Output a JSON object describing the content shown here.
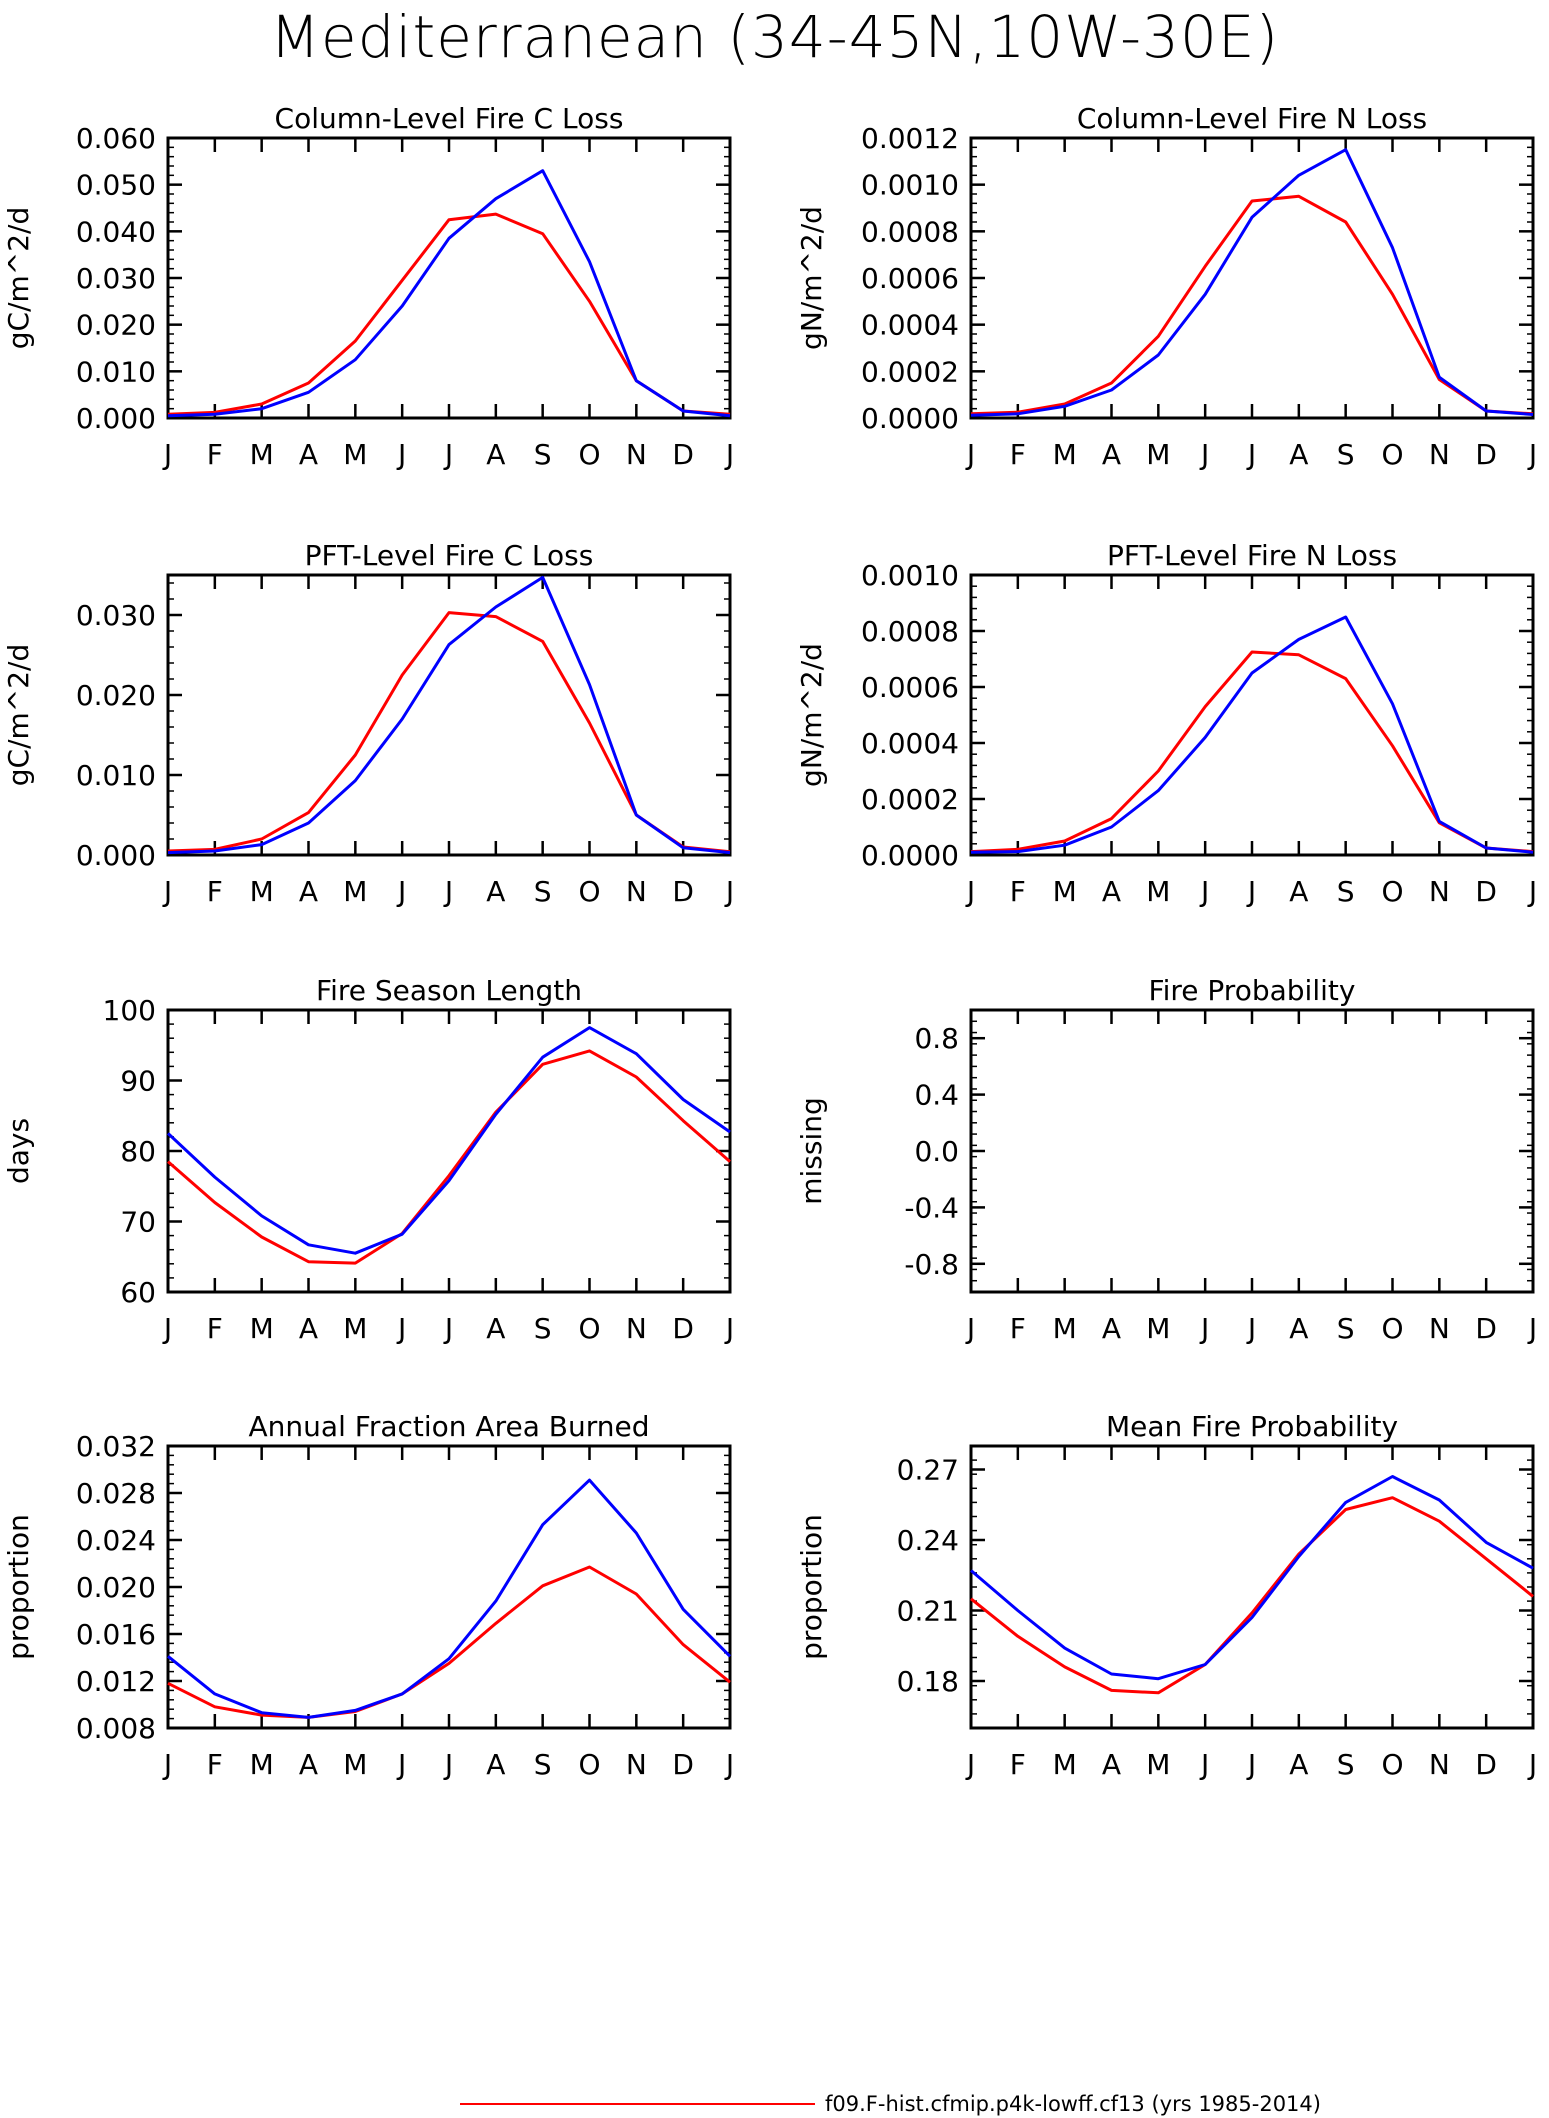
{
  "title": "Mediterranean (34-45N,10W-30E)",
  "colors": {
    "run1": "#ff0000",
    "run2": "#0000ff",
    "axis": "#000000"
  },
  "month_labels": [
    "J",
    "F",
    "M",
    "A",
    "M",
    "J",
    "J",
    "A",
    "S",
    "O",
    "N",
    "D",
    "J"
  ],
  "legend": [
    {
      "label": "f09.F-hist.cfmip.p4k-lowff.cf13 (yrs 1985-2014)",
      "color": "#ff0000"
    }
  ],
  "chart_data": [
    {
      "type": "line",
      "title": "Column-Level Fire C Loss",
      "ylabel": "gC/m^2/d",
      "ylim": [
        0,
        0.06
      ],
      "yticks": [
        "0.000",
        "0.010",
        "0.020",
        "0.030",
        "0.040",
        "0.050",
        "0.060"
      ],
      "categories": [
        "J",
        "F",
        "M",
        "A",
        "M",
        "J",
        "J",
        "A",
        "S",
        "O",
        "N",
        "D",
        "J"
      ],
      "series": [
        {
          "color": "#ff0000",
          "values": [
            0.0008,
            0.0012,
            0.003,
            0.0075,
            0.0165,
            0.0295,
            0.0425,
            0.0437,
            0.0395,
            0.025,
            0.008,
            0.0015,
            0.0008
          ]
        },
        {
          "color": "#0000ff",
          "values": [
            0.0005,
            0.0008,
            0.002,
            0.0055,
            0.0125,
            0.024,
            0.0385,
            0.047,
            0.053,
            0.0335,
            0.008,
            0.0015,
            0.0005
          ]
        }
      ]
    },
    {
      "type": "line",
      "title": "Column-Level Fire N Loss",
      "ylabel": "gN/m^2/d",
      "ylim": [
        0,
        0.0012
      ],
      "yticks": [
        "0.0000",
        "0.0002",
        "0.0004",
        "0.0006",
        "0.0008",
        "0.0010",
        "0.0012"
      ],
      "categories": [
        "J",
        "F",
        "M",
        "A",
        "M",
        "J",
        "J",
        "A",
        "S",
        "O",
        "N",
        "D",
        "J"
      ],
      "series": [
        {
          "color": "#ff0000",
          "values": [
            1.8e-05,
            2.5e-05,
            6e-05,
            0.00015,
            0.00035,
            0.00065,
            0.00093,
            0.00095,
            0.00084,
            0.00053,
            0.000165,
            3e-05,
            1.8e-05
          ]
        },
        {
          "color": "#0000ff",
          "values": [
            1.2e-05,
            1.8e-05,
            5e-05,
            0.00012,
            0.00027,
            0.00053,
            0.00086,
            0.00104,
            0.00115,
            0.00073,
            0.000175,
            3e-05,
            1.5e-05
          ]
        }
      ]
    },
    {
      "type": "line",
      "title": "PFT-Level Fire C Loss",
      "ylabel": "gC/m^2/d",
      "ylim": [
        0,
        0.035
      ],
      "yticks": [
        "0.000",
        "0.010",
        "0.020",
        "0.030"
      ],
      "ytick_values": [
        0,
        0.01,
        0.02,
        0.03
      ],
      "categories": [
        "J",
        "F",
        "M",
        "A",
        "M",
        "J",
        "J",
        "A",
        "S",
        "O",
        "N",
        "D",
        "J"
      ],
      "series": [
        {
          "color": "#ff0000",
          "values": [
            0.0005,
            0.0007,
            0.002,
            0.0053,
            0.0125,
            0.0225,
            0.0303,
            0.0298,
            0.0267,
            0.0165,
            0.005,
            0.001,
            0.0004
          ]
        },
        {
          "color": "#0000ff",
          "values": [
            0.0003,
            0.0005,
            0.0013,
            0.004,
            0.0093,
            0.017,
            0.0263,
            0.031,
            0.0347,
            0.0213,
            0.005,
            0.0009,
            0.0003
          ]
        }
      ]
    },
    {
      "type": "line",
      "title": "PFT-Level Fire N Loss",
      "ylabel": "gN/m^2/d",
      "ylim": [
        0,
        0.001
      ],
      "yticks": [
        "0.0000",
        "0.0002",
        "0.0004",
        "0.0006",
        "0.0008",
        "0.0010"
      ],
      "categories": [
        "J",
        "F",
        "M",
        "A",
        "M",
        "J",
        "J",
        "A",
        "S",
        "O",
        "N",
        "D",
        "J"
      ],
      "series": [
        {
          "color": "#ff0000",
          "values": [
            1.2e-05,
            2e-05,
            5e-05,
            0.00013,
            0.0003,
            0.00053,
            0.000725,
            0.000715,
            0.00063,
            0.00039,
            0.000115,
            2.5e-05,
            1.2e-05
          ]
        },
        {
          "color": "#0000ff",
          "values": [
            1e-05,
            1.2e-05,
            3.5e-05,
            0.0001,
            0.00023,
            0.00042,
            0.00065,
            0.00077,
            0.00085,
            0.00054,
            0.00012,
            2.5e-05,
            1e-05
          ]
        }
      ]
    },
    {
      "type": "line",
      "title": "Fire Season Length",
      "ylabel": "days",
      "ylim": [
        60,
        100
      ],
      "yticks": [
        "60",
        "70",
        "80",
        "90",
        "100"
      ],
      "categories": [
        "J",
        "F",
        "M",
        "A",
        "M",
        "J",
        "J",
        "A",
        "S",
        "O",
        "N",
        "D",
        "J"
      ],
      "series": [
        {
          "color": "#ff0000",
          "values": [
            78.5,
            72.7,
            67.8,
            64.3,
            64.1,
            68.3,
            76.5,
            85.5,
            92.3,
            94.2,
            90.5,
            84.3,
            78.5
          ]
        },
        {
          "color": "#0000ff",
          "values": [
            82.5,
            76.3,
            70.8,
            66.7,
            65.5,
            68.2,
            75.8,
            85.2,
            93.3,
            97.5,
            93.8,
            87.3,
            82.7
          ]
        }
      ]
    },
    {
      "type": "line",
      "title": "Fire Probability",
      "ylabel": "missing",
      "ylim": [
        -1,
        1
      ],
      "yticks": [
        "-0.8",
        "-0.4",
        "0.0",
        "0.4",
        "0.8"
      ],
      "ytick_values": [
        -0.8,
        -0.4,
        0,
        0.4,
        0.8
      ],
      "categories": [
        "J",
        "F",
        "M",
        "A",
        "M",
        "J",
        "J",
        "A",
        "S",
        "O",
        "N",
        "D",
        "J"
      ],
      "series": []
    },
    {
      "type": "line",
      "title": "Annual Fraction Area Burned",
      "ylabel": "proportion",
      "ylim": [
        0.008,
        0.032
      ],
      "yticks": [
        "0.008",
        "0.012",
        "0.016",
        "0.020",
        "0.024",
        "0.028",
        "0.032"
      ],
      "categories": [
        "J",
        "F",
        "M",
        "A",
        "M",
        "J",
        "J",
        "A",
        "S",
        "O",
        "N",
        "D",
        "J"
      ],
      "series": [
        {
          "color": "#ff0000",
          "values": [
            0.0118,
            0.0098,
            0.0091,
            0.0089,
            0.0094,
            0.0109,
            0.0135,
            0.0169,
            0.0201,
            0.0217,
            0.0194,
            0.0151,
            0.0119
          ]
        },
        {
          "color": "#0000ff",
          "values": [
            0.0141,
            0.0109,
            0.0093,
            0.0089,
            0.0095,
            0.0109,
            0.0139,
            0.0188,
            0.0253,
            0.0291,
            0.0246,
            0.0181,
            0.0141
          ]
        }
      ]
    },
    {
      "type": "line",
      "title": "Mean Fire Probability",
      "ylabel": "proportion",
      "ylim": [
        0.16,
        0.28
      ],
      "yticks": [
        "0.18",
        "0.21",
        "0.24",
        "0.27"
      ],
      "ytick_values": [
        0.18,
        0.21,
        0.24,
        0.27
      ],
      "categories": [
        "J",
        "F",
        "M",
        "A",
        "M",
        "J",
        "J",
        "A",
        "S",
        "O",
        "N",
        "D",
        "J"
      ],
      "series": [
        {
          "color": "#ff0000",
          "values": [
            0.215,
            0.199,
            0.186,
            0.176,
            0.175,
            0.187,
            0.209,
            0.234,
            0.253,
            0.258,
            0.248,
            0.232,
            0.216
          ]
        },
        {
          "color": "#0000ff",
          "values": [
            0.227,
            0.21,
            0.194,
            0.183,
            0.181,
            0.187,
            0.207,
            0.233,
            0.256,
            0.267,
            0.257,
            0.239,
            0.228
          ]
        }
      ]
    }
  ]
}
